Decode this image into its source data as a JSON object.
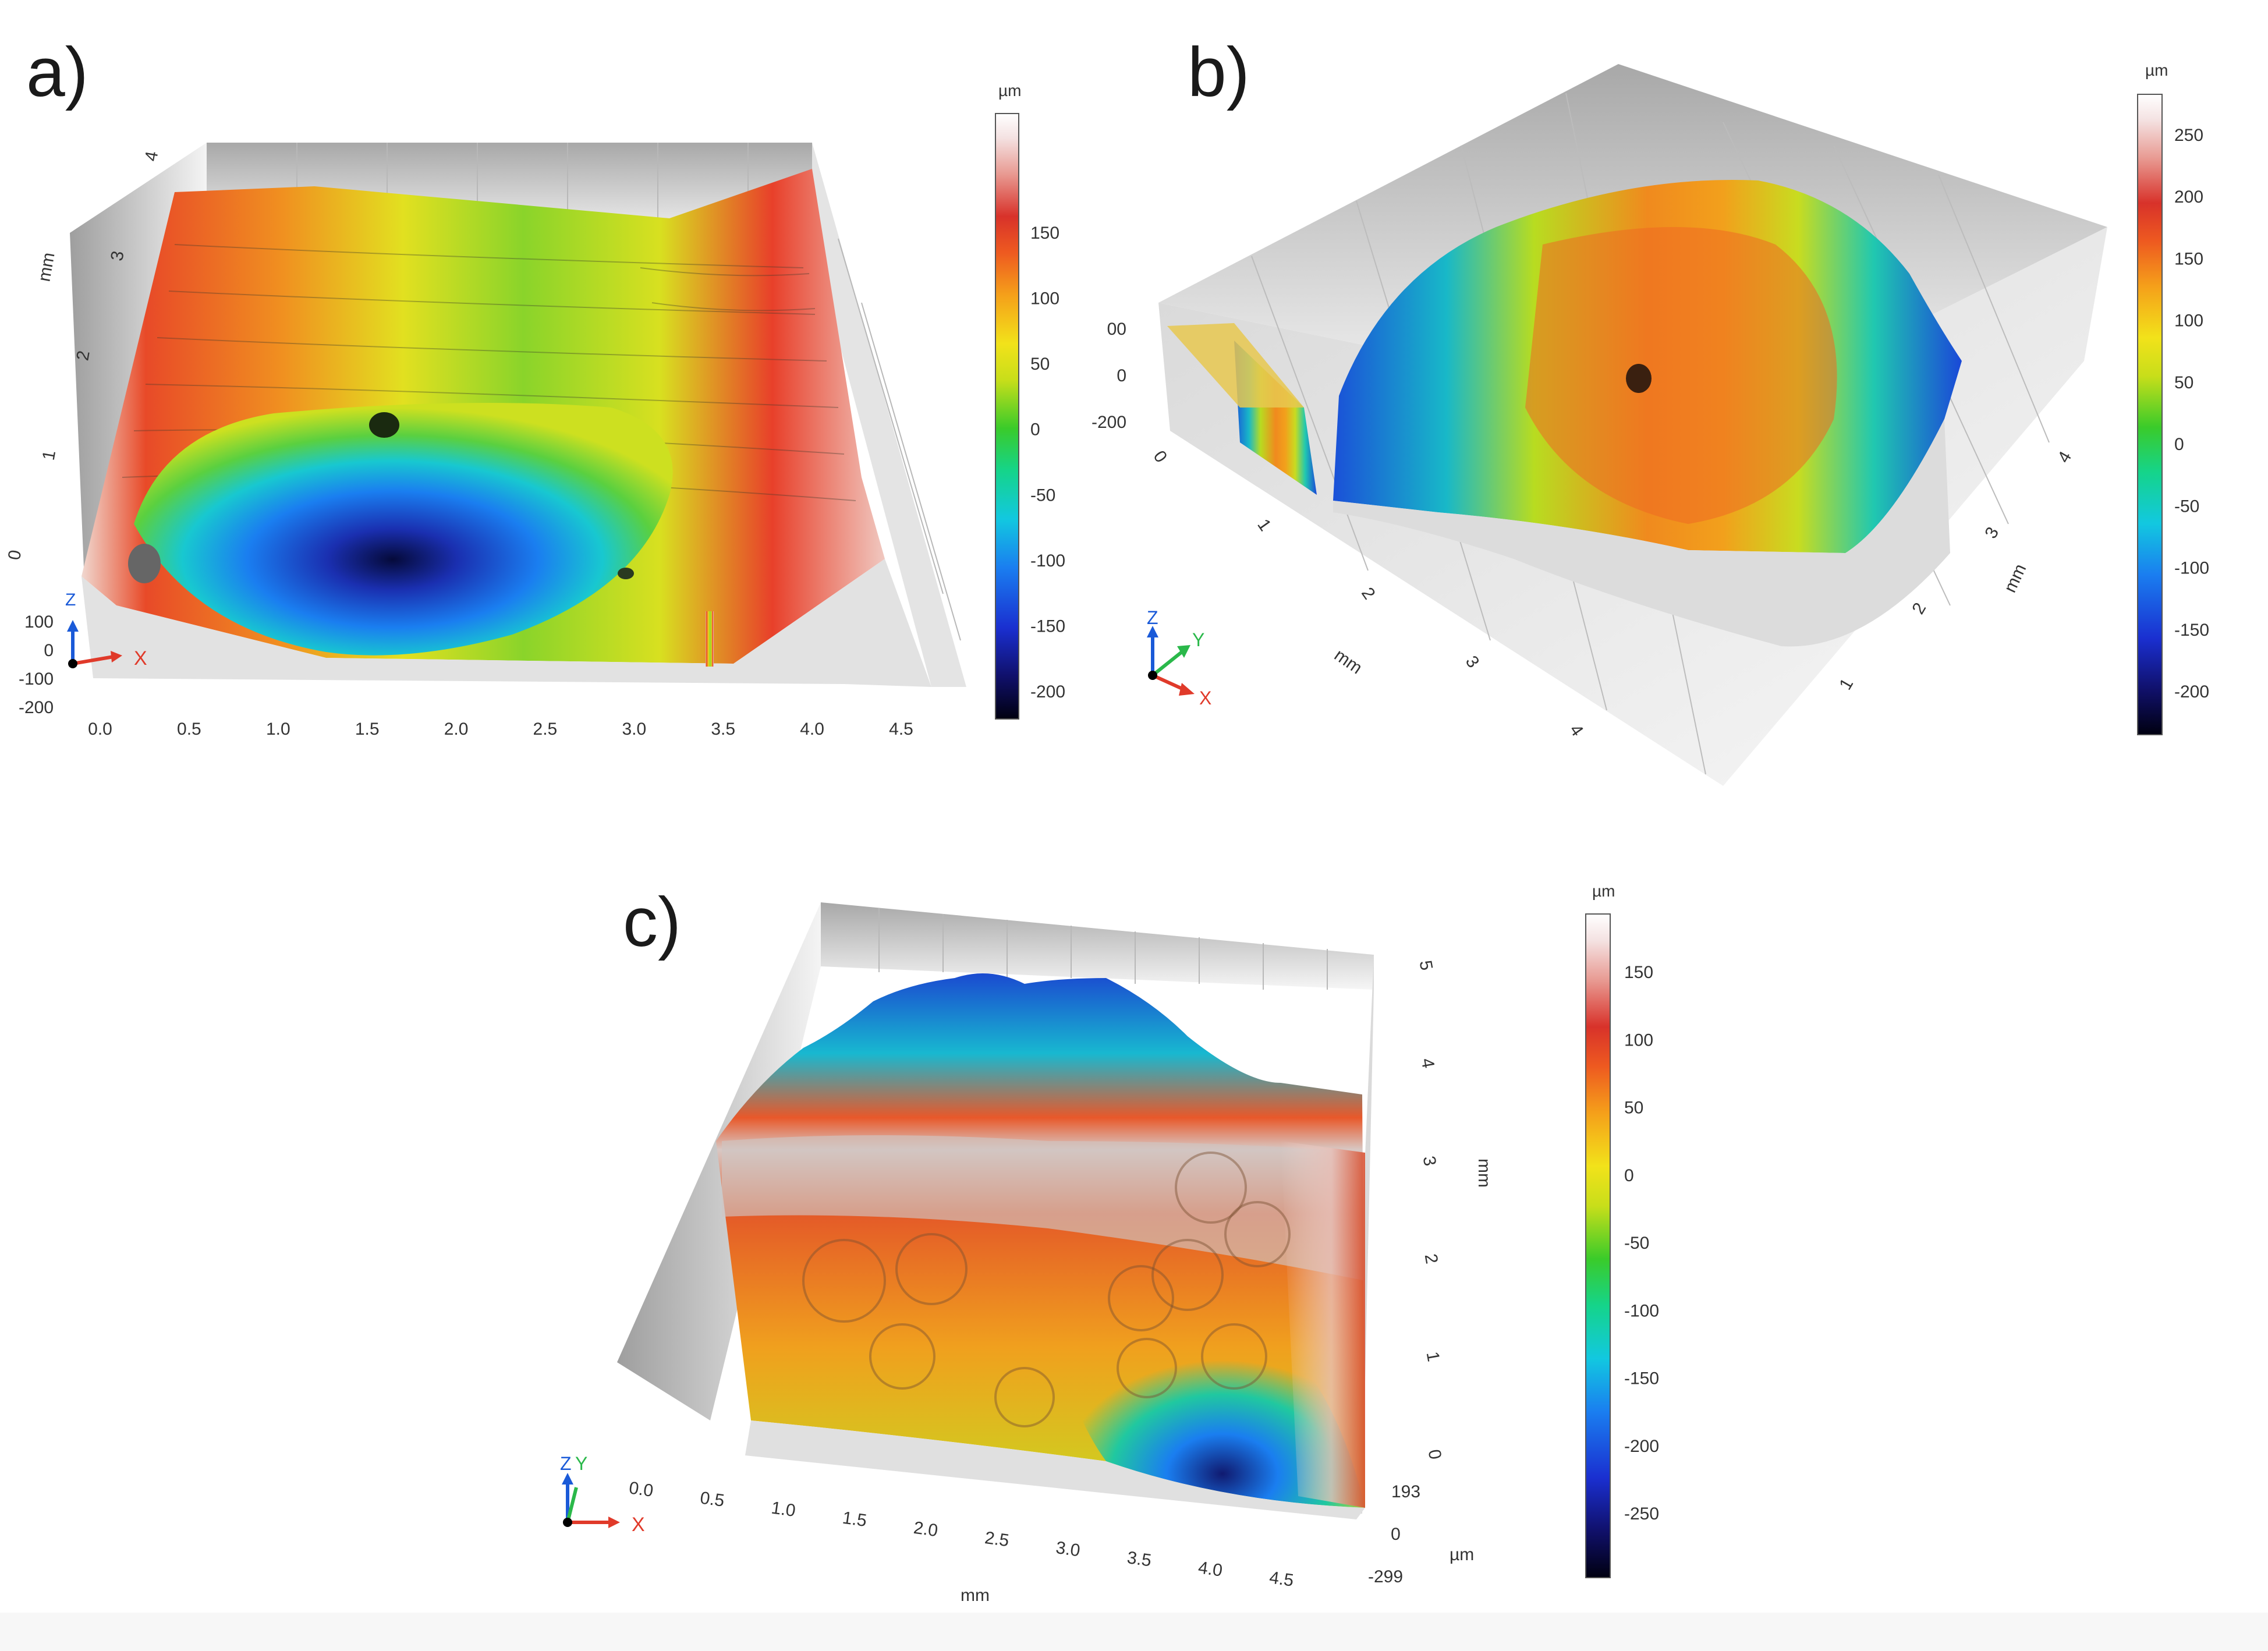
{
  "panels": [
    {
      "letter": "a)",
      "colorbar": {
        "unit": "µm",
        "ticks": [
          "150",
          "100",
          "50",
          "0",
          "-50",
          "-100",
          "-150",
          "-200"
        ]
      },
      "x_axis": {
        "ticks": [
          "0.0",
          "0.5",
          "1.0",
          "1.5",
          "2.0",
          "2.5",
          "3.0",
          "3.5",
          "4.0",
          "4.5"
        ]
      },
      "y_axis": {
        "label": "mm",
        "ticks": [
          "0",
          "1",
          "2",
          "3",
          "4"
        ]
      },
      "z_axis": {
        "ticks": [
          "100",
          "0",
          "-100",
          "-200"
        ]
      },
      "triad": {
        "x": "X",
        "z": "Z"
      }
    },
    {
      "letter": "b)",
      "colorbar": {
        "unit": "µm",
        "ticks": [
          "250",
          "200",
          "150",
          "100",
          "50",
          "0",
          "-50",
          "-100",
          "-150",
          "-200"
        ]
      },
      "x_axis": {
        "label": "mm",
        "ticks": [
          "0",
          "1",
          "2",
          "3",
          "4"
        ]
      },
      "y_axis": {
        "label": "mm",
        "ticks": [
          "1",
          "2",
          "3",
          "4"
        ]
      },
      "z_axis": {
        "ticks": [
          "00",
          "0",
          "-200"
        ]
      },
      "triad": {
        "x": "X",
        "y": "Y",
        "z": "Z"
      }
    },
    {
      "letter": "c)",
      "colorbar": {
        "unit": "µm",
        "ticks": [
          "150",
          "100",
          "50",
          "0",
          "-50",
          "-100",
          "-150",
          "-200",
          "-250"
        ]
      },
      "x_axis": {
        "label": "mm",
        "ticks": [
          "0.0",
          "0.5",
          "1.0",
          "1.5",
          "2.0",
          "2.5",
          "3.0",
          "3.5",
          "4.0",
          "4.5"
        ]
      },
      "y_axis": {
        "label": "mm",
        "ticks": [
          "0",
          "1",
          "2",
          "3",
          "4",
          "5"
        ]
      },
      "z_axis": {
        "label": "µm",
        "ticks": [
          "193",
          "0",
          "-299"
        ]
      },
      "triad": {
        "x": "X",
        "y": "Y",
        "z": "Z"
      }
    }
  ],
  "colormap": [
    "#000010",
    "#10106a",
    "#1a2fd0",
    "#1a7ef0",
    "#12c8e0",
    "#15d48a",
    "#3acb2a",
    "#c8de1a",
    "#f2e21a",
    "#f5a01a",
    "#ee5a20",
    "#d8322a",
    "#e89a92",
    "#f4e2e2",
    "#ffffff"
  ]
}
